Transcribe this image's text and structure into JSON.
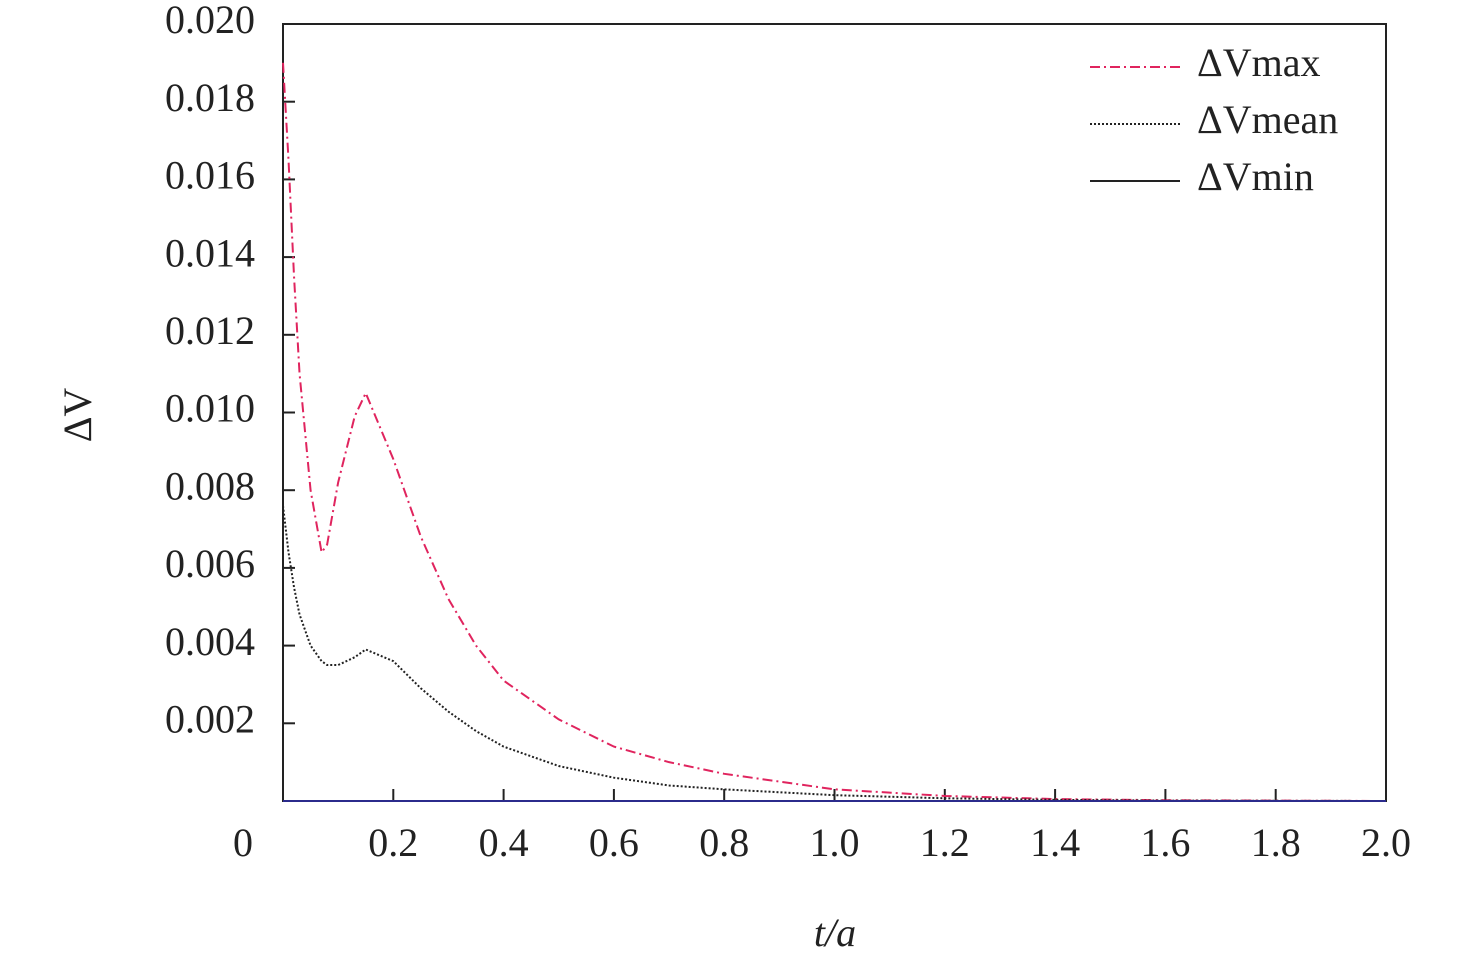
{
  "chart_data": {
    "type": "line",
    "xlabel": "t/a",
    "ylabel": "ΔV",
    "x": [
      0,
      0.01,
      0.02,
      0.03,
      0.05,
      0.07,
      0.08,
      0.1,
      0.13,
      0.15,
      0.2,
      0.25,
      0.3,
      0.35,
      0.4,
      0.5,
      0.6,
      0.7,
      0.8,
      1.0,
      1.2,
      1.4,
      1.6,
      1.8,
      2.0
    ],
    "series": [
      {
        "name": "ΔVmax",
        "color": "#e0245e",
        "linestyle": "dashdot",
        "values": [
          0.019,
          0.0165,
          0.0135,
          0.011,
          0.008,
          0.0064,
          0.0066,
          0.0082,
          0.0099,
          0.0105,
          0.0088,
          0.0068,
          0.0052,
          0.004,
          0.0031,
          0.0021,
          0.0014,
          0.001,
          0.0007,
          0.0003,
          0.00013,
          5e-05,
          2e-05,
          1e-05,
          0
        ]
      },
      {
        "name": "ΔVmean",
        "color": "#222222",
        "linestyle": "dotted",
        "values": [
          0.0076,
          0.0064,
          0.0055,
          0.0048,
          0.004,
          0.0036,
          0.0035,
          0.0035,
          0.0037,
          0.0039,
          0.0036,
          0.0029,
          0.0023,
          0.0018,
          0.0014,
          0.0009,
          0.0006,
          0.0004,
          0.0003,
          0.00015,
          7e-05,
          3e-05,
          1e-05,
          5e-06,
          0
        ]
      },
      {
        "name": "ΔVmin",
        "color": "#2b2b8c",
        "linestyle": "solid",
        "values": [
          0,
          0,
          0,
          0,
          0,
          0,
          0,
          0,
          0,
          0,
          0,
          0,
          0,
          0,
          0,
          0,
          0,
          0,
          0,
          0,
          0,
          0,
          0,
          0,
          0
        ]
      }
    ],
    "xlim": [
      0,
      2.0
    ],
    "xticks": [
      0,
      0.2,
      0.4,
      0.6,
      0.8,
      {
        "value": 1.0,
        "label": "1.0"
      },
      1.2,
      1.4,
      1.6,
      1.8,
      {
        "value": 2.0,
        "label": "2.0"
      }
    ],
    "ylim": [
      0,
      0.02
    ],
    "yticks": [
      {
        "value": 0.002,
        "label": "0.002"
      },
      {
        "value": 0.004,
        "label": "0.004"
      },
      {
        "value": 0.006,
        "label": "0.006"
      },
      {
        "value": 0.008,
        "label": "0.008"
      },
      {
        "value": 0.01,
        "label": "0.010"
      },
      {
        "value": 0.012,
        "label": "0.012"
      },
      {
        "value": 0.014,
        "label": "0.014"
      },
      {
        "value": 0.016,
        "label": "0.016"
      },
      {
        "value": 0.018,
        "label": "0.018"
      },
      {
        "value": 0.02,
        "label": "0.020"
      }
    ],
    "grid": false,
    "legend": "upper right"
  }
}
